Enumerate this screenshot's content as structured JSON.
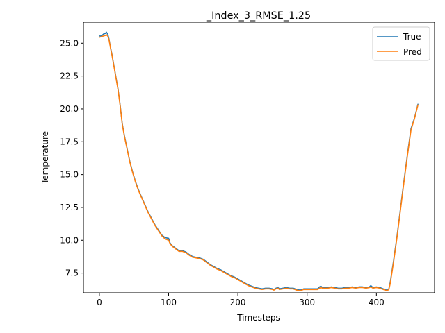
{
  "chart_data": {
    "type": "line",
    "title": "_Index_3_RMSE_1.25",
    "xlabel": "Timesteps",
    "ylabel": "Temperature",
    "xlim": [
      -23,
      484
    ],
    "ylim": [
      6.0,
      26.6
    ],
    "xticks": [
      0,
      100,
      200,
      300,
      400
    ],
    "yticks": [
      7.5,
      10.0,
      12.5,
      15.0,
      17.5,
      20.0,
      22.5,
      25.0
    ],
    "ytick_labels": [
      "7.5",
      "10.0",
      "12.5",
      "15.0",
      "17.5",
      "20.0",
      "22.5",
      "25.0"
    ],
    "grid": false,
    "legend": "top-right",
    "colors": {
      "True": "#1f77b4",
      "Pred": "#ff7f0e"
    },
    "series": [
      {
        "name": "True",
        "x": [
          0,
          3,
          6,
          9,
          10,
          12,
          14,
          16,
          18,
          20,
          22,
          24,
          27,
          30,
          33,
          36,
          40,
          44,
          48,
          52,
          56,
          60,
          65,
          70,
          75,
          80,
          85,
          90,
          95,
          100,
          102,
          105,
          110,
          115,
          120,
          125,
          130,
          135,
          140,
          145,
          150,
          155,
          160,
          165,
          170,
          175,
          180,
          185,
          190,
          195,
          200,
          205,
          210,
          215,
          220,
          225,
          230,
          235,
          240,
          245,
          250,
          252,
          255,
          258,
          260,
          265,
          270,
          275,
          280,
          285,
          290,
          295,
          300,
          305,
          310,
          315,
          318,
          320,
          322,
          325,
          330,
          335,
          340,
          345,
          350,
          355,
          360,
          365,
          370,
          375,
          380,
          385,
          390,
          392,
          395,
          400,
          405,
          410,
          415,
          418,
          420,
          425,
          430,
          435,
          440,
          445,
          450,
          455,
          460
        ],
        "y": [
          25.55,
          25.55,
          25.7,
          25.75,
          25.85,
          25.7,
          25.3,
          24.7,
          24.2,
          23.6,
          23.0,
          22.4,
          21.5,
          20.3,
          18.9,
          18.0,
          17.0,
          16.0,
          15.2,
          14.5,
          13.9,
          13.4,
          12.8,
          12.2,
          11.7,
          11.2,
          10.8,
          10.4,
          10.2,
          10.15,
          9.8,
          9.6,
          9.4,
          9.2,
          9.2,
          9.1,
          8.9,
          8.75,
          8.7,
          8.65,
          8.55,
          8.35,
          8.15,
          8.0,
          7.85,
          7.75,
          7.6,
          7.45,
          7.3,
          7.2,
          7.05,
          6.9,
          6.75,
          6.6,
          6.5,
          6.4,
          6.35,
          6.3,
          6.35,
          6.35,
          6.3,
          6.25,
          6.35,
          6.4,
          6.3,
          6.35,
          6.4,
          6.35,
          6.35,
          6.25,
          6.2,
          6.3,
          6.3,
          6.3,
          6.3,
          6.3,
          6.45,
          6.5,
          6.4,
          6.4,
          6.4,
          6.45,
          6.4,
          6.35,
          6.35,
          6.4,
          6.4,
          6.45,
          6.4,
          6.45,
          6.45,
          6.4,
          6.45,
          6.55,
          6.4,
          6.45,
          6.4,
          6.3,
          6.2,
          6.3,
          6.8,
          8.5,
          10.4,
          12.5,
          14.6,
          16.6,
          18.5,
          19.3,
          20.35
        ]
      },
      {
        "name": "Pred",
        "x": [
          0,
          3,
          6,
          9,
          10,
          12,
          14,
          16,
          18,
          20,
          22,
          24,
          27,
          30,
          33,
          36,
          40,
          44,
          48,
          52,
          56,
          60,
          65,
          70,
          75,
          80,
          85,
          90,
          95,
          100,
          102,
          105,
          110,
          115,
          120,
          125,
          130,
          135,
          140,
          145,
          150,
          155,
          160,
          165,
          170,
          175,
          180,
          185,
          190,
          195,
          200,
          205,
          210,
          215,
          220,
          225,
          230,
          235,
          240,
          245,
          250,
          252,
          255,
          258,
          260,
          265,
          270,
          275,
          280,
          285,
          290,
          295,
          300,
          305,
          310,
          315,
          318,
          320,
          322,
          325,
          330,
          335,
          340,
          345,
          350,
          355,
          360,
          365,
          370,
          375,
          380,
          385,
          390,
          392,
          395,
          400,
          405,
          410,
          415,
          418,
          420,
          425,
          430,
          435,
          440,
          445,
          450,
          455,
          460
        ],
        "y": [
          25.45,
          25.5,
          25.55,
          25.6,
          25.65,
          25.55,
          25.25,
          24.65,
          24.15,
          23.55,
          22.95,
          22.35,
          21.45,
          20.25,
          18.85,
          17.95,
          16.95,
          15.95,
          15.15,
          14.45,
          13.85,
          13.35,
          12.75,
          12.15,
          11.65,
          11.15,
          10.75,
          10.35,
          10.1,
          10.0,
          9.75,
          9.55,
          9.35,
          9.15,
          9.15,
          9.05,
          8.85,
          8.7,
          8.65,
          8.6,
          8.5,
          8.3,
          8.1,
          7.95,
          7.8,
          7.7,
          7.55,
          7.4,
          7.25,
          7.15,
          7.0,
          6.85,
          6.7,
          6.55,
          6.45,
          6.35,
          6.3,
          6.25,
          6.3,
          6.3,
          6.25,
          6.2,
          6.3,
          6.35,
          6.25,
          6.3,
          6.35,
          6.3,
          6.3,
          6.2,
          6.15,
          6.25,
          6.25,
          6.25,
          6.25,
          6.25,
          6.35,
          6.4,
          6.35,
          6.35,
          6.35,
          6.4,
          6.35,
          6.3,
          6.3,
          6.35,
          6.35,
          6.4,
          6.35,
          6.4,
          6.4,
          6.35,
          6.4,
          6.45,
          6.35,
          6.4,
          6.35,
          6.25,
          6.15,
          6.25,
          6.7,
          8.4,
          10.3,
          12.4,
          14.5,
          16.5,
          18.4,
          19.25,
          20.3
        ]
      }
    ]
  }
}
